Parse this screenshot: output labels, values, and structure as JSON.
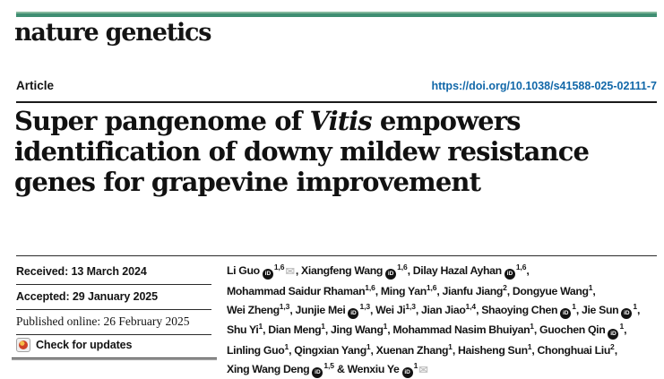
{
  "journal": {
    "name": "nature genetics"
  },
  "article": {
    "label": "Article",
    "doi": "https://doi.org/10.1038/s41588-025-02111-7",
    "title": {
      "line1_pre": "Super pangenome of ",
      "line1_italic": "Vitis",
      "line1_post": " empowers",
      "line2": "identification of downy mildew resistance",
      "line3": "genes for grapevine improvement"
    }
  },
  "dates": {
    "received": "Received: 13 March 2024",
    "accepted": "Accepted: 29 January 2025",
    "published": "Published online: 26 February 2025",
    "check_updates": "Check for updates"
  },
  "icons": {
    "orcid_label": "iD",
    "mail_glyph": "✉",
    "crossmark": "crossmark-circle"
  },
  "colors": {
    "brand_teal": "#3f8e72",
    "link_blue": "#1268a9",
    "text": "#1a1a1a",
    "mail_gray": "#c2c2c2"
  },
  "authors": {
    "lines": [
      [
        {
          "t": "t",
          "v": "Li Guo "
        },
        {
          "t": "o"
        },
        {
          "t": "s",
          "v": "1,6"
        },
        {
          "t": "m"
        },
        {
          "t": "t",
          "v": ", Xiangfeng Wang "
        },
        {
          "t": "o"
        },
        {
          "t": "s",
          "v": "1,6"
        },
        {
          "t": "t",
          "v": ", Dilay Hazal Ayhan "
        },
        {
          "t": "o"
        },
        {
          "t": "s",
          "v": "1,6"
        },
        {
          "t": "t",
          "v": ","
        }
      ],
      [
        {
          "t": "t",
          "v": "Mohammad Saidur Rhaman"
        },
        {
          "t": "s",
          "v": "1,6"
        },
        {
          "t": "t",
          "v": ", Ming Yan"
        },
        {
          "t": "s",
          "v": "1,6"
        },
        {
          "t": "t",
          "v": ", Jianfu Jiang"
        },
        {
          "t": "s",
          "v": "2"
        },
        {
          "t": "t",
          "v": ", Dongyue Wang"
        },
        {
          "t": "s",
          "v": "1"
        },
        {
          "t": "t",
          "v": ","
        }
      ],
      [
        {
          "t": "t",
          "v": "Wei Zheng"
        },
        {
          "t": "s",
          "v": "1,3"
        },
        {
          "t": "t",
          "v": ", Junjie Mei "
        },
        {
          "t": "o"
        },
        {
          "t": "s",
          "v": "1,3"
        },
        {
          "t": "t",
          "v": ", Wei Ji"
        },
        {
          "t": "s",
          "v": "1,3"
        },
        {
          "t": "t",
          "v": ", Jian Jiao"
        },
        {
          "t": "s",
          "v": "1,4"
        },
        {
          "t": "t",
          "v": ", Shaoying Chen "
        },
        {
          "t": "o"
        },
        {
          "t": "s",
          "v": "1"
        },
        {
          "t": "t",
          "v": ", Jie Sun "
        },
        {
          "t": "o"
        },
        {
          "t": "s",
          "v": "1"
        },
        {
          "t": "t",
          "v": ","
        }
      ],
      [
        {
          "t": "t",
          "v": "Shu Yi"
        },
        {
          "t": "s",
          "v": "1"
        },
        {
          "t": "t",
          "v": ", Dian Meng"
        },
        {
          "t": "s",
          "v": "1"
        },
        {
          "t": "t",
          "v": ", Jing Wang"
        },
        {
          "t": "s",
          "v": "1"
        },
        {
          "t": "t",
          "v": ", Mohammad Nasim Bhuiyan"
        },
        {
          "t": "s",
          "v": "1"
        },
        {
          "t": "t",
          "v": ", Guochen Qin "
        },
        {
          "t": "o"
        },
        {
          "t": "s",
          "v": "1"
        },
        {
          "t": "t",
          "v": ","
        }
      ],
      [
        {
          "t": "t",
          "v": "Linling Guo"
        },
        {
          "t": "s",
          "v": "1"
        },
        {
          "t": "t",
          "v": ", Qingxian Yang"
        },
        {
          "t": "s",
          "v": "1"
        },
        {
          "t": "t",
          "v": ", Xuenan Zhang"
        },
        {
          "t": "s",
          "v": "1"
        },
        {
          "t": "t",
          "v": ", Haisheng Sun"
        },
        {
          "t": "s",
          "v": "1"
        },
        {
          "t": "t",
          "v": ", Chonghuai Liu"
        },
        {
          "t": "s",
          "v": "2"
        },
        {
          "t": "t",
          "v": ","
        }
      ],
      [
        {
          "t": "t",
          "v": "Xing Wang Deng "
        },
        {
          "t": "o"
        },
        {
          "t": "s",
          "v": "1,5"
        },
        {
          "t": "t",
          "v": " & Wenxiu Ye "
        },
        {
          "t": "o"
        },
        {
          "t": "s",
          "v": "1"
        },
        {
          "t": "m"
        }
      ]
    ]
  }
}
